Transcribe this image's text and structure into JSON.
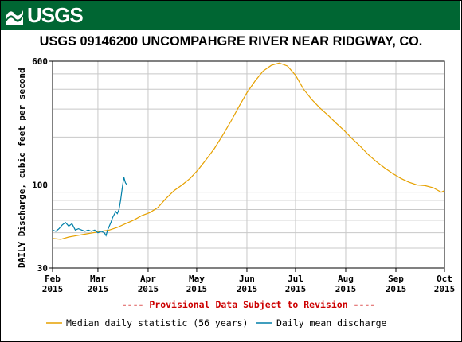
{
  "brand": {
    "logo_text": "USGS",
    "banner_color": "#006633"
  },
  "chart_data": {
    "type": "line",
    "title": "USGS 09146200 UNCOMPAHGRE RIVER NEAR RIDGWAY, CO.",
    "ylabel": "DAILY Discharge, cubic feet per second",
    "xlabel": "",
    "y_scale": "log",
    "ylim": [
      30,
      600
    ],
    "y_ticks": [
      {
        "value": 30,
        "label": "30"
      },
      {
        "value": 100,
        "label": "100"
      },
      {
        "value": 600,
        "label": "600"
      }
    ],
    "x_range": [
      "2015-02-01",
      "2015-10-01"
    ],
    "x_ticks": [
      {
        "date": "2015-02-01",
        "month": "Feb",
        "year": "2015"
      },
      {
        "date": "2015-03-01",
        "month": "Mar",
        "year": "2015"
      },
      {
        "date": "2015-04-01",
        "month": "Apr",
        "year": "2015"
      },
      {
        "date": "2015-05-01",
        "month": "May",
        "year": "2015"
      },
      {
        "date": "2015-06-01",
        "month": "Jun",
        "year": "2015"
      },
      {
        "date": "2015-07-01",
        "month": "Jul",
        "year": "2015"
      },
      {
        "date": "2015-08-01",
        "month": "Aug",
        "year": "2015"
      },
      {
        "date": "2015-09-01",
        "month": "Sep",
        "year": "2015"
      },
      {
        "date": "2015-10-01",
        "month": "Oct",
        "year": "2015"
      }
    ],
    "grid": true,
    "annotation": "---- Provisional Data Subject to Revision ----",
    "series": [
      {
        "name": "Median daily statistic (56 years)",
        "color": "#e6a100",
        "points": [
          [
            "2015-02-01",
            46
          ],
          [
            "2015-02-06",
            45.5
          ],
          [
            "2015-02-11",
            47
          ],
          [
            "2015-02-16",
            48
          ],
          [
            "2015-02-21",
            49
          ],
          [
            "2015-02-26",
            50
          ],
          [
            "2015-03-03",
            51
          ],
          [
            "2015-03-08",
            52
          ],
          [
            "2015-03-13",
            54
          ],
          [
            "2015-03-18",
            57
          ],
          [
            "2015-03-23",
            60
          ],
          [
            "2015-03-28",
            64
          ],
          [
            "2015-04-02",
            67
          ],
          [
            "2015-04-07",
            72
          ],
          [
            "2015-04-12",
            82
          ],
          [
            "2015-04-17",
            92
          ],
          [
            "2015-04-22",
            100
          ],
          [
            "2015-04-27",
            110
          ],
          [
            "2015-05-02",
            125
          ],
          [
            "2015-05-07",
            145
          ],
          [
            "2015-05-12",
            170
          ],
          [
            "2015-05-17",
            205
          ],
          [
            "2015-05-22",
            250
          ],
          [
            "2015-05-27",
            310
          ],
          [
            "2015-06-01",
            380
          ],
          [
            "2015-06-06",
            450
          ],
          [
            "2015-06-11",
            520
          ],
          [
            "2015-06-16",
            565
          ],
          [
            "2015-06-21",
            585
          ],
          [
            "2015-06-26",
            560
          ],
          [
            "2015-07-01",
            490
          ],
          [
            "2015-07-06",
            400
          ],
          [
            "2015-07-11",
            345
          ],
          [
            "2015-07-16",
            305
          ],
          [
            "2015-07-21",
            275
          ],
          [
            "2015-07-26",
            245
          ],
          [
            "2015-07-31",
            220
          ],
          [
            "2015-08-05",
            195
          ],
          [
            "2015-08-10",
            175
          ],
          [
            "2015-08-15",
            155
          ],
          [
            "2015-08-20",
            140
          ],
          [
            "2015-08-25",
            128
          ],
          [
            "2015-08-30",
            118
          ],
          [
            "2015-09-04",
            110
          ],
          [
            "2015-09-09",
            104
          ],
          [
            "2015-09-14",
            100
          ],
          [
            "2015-09-19",
            99
          ],
          [
            "2015-09-24",
            96
          ],
          [
            "2015-09-29",
            90
          ],
          [
            "2015-10-01",
            92
          ]
        ]
      },
      {
        "name": "Daily mean discharge",
        "color": "#007fa8",
        "points": [
          [
            "2015-02-01",
            52
          ],
          [
            "2015-02-03",
            51
          ],
          [
            "2015-02-05",
            53
          ],
          [
            "2015-02-07",
            56
          ],
          [
            "2015-02-09",
            58
          ],
          [
            "2015-02-11",
            55
          ],
          [
            "2015-02-13",
            57
          ],
          [
            "2015-02-15",
            52
          ],
          [
            "2015-02-17",
            53
          ],
          [
            "2015-02-19",
            52
          ],
          [
            "2015-02-21",
            51
          ],
          [
            "2015-02-23",
            52
          ],
          [
            "2015-02-25",
            51
          ],
          [
            "2015-02-27",
            52
          ],
          [
            "2015-03-01",
            50
          ],
          [
            "2015-03-03",
            51
          ],
          [
            "2015-03-05",
            50
          ],
          [
            "2015-03-06",
            48
          ],
          [
            "2015-03-07",
            52
          ],
          [
            "2015-03-09",
            58
          ],
          [
            "2015-03-10",
            62
          ],
          [
            "2015-03-12",
            68
          ],
          [
            "2015-03-13",
            66
          ],
          [
            "2015-03-14",
            70
          ],
          [
            "2015-03-15",
            80
          ],
          [
            "2015-03-16",
            95
          ],
          [
            "2015-03-17",
            112
          ],
          [
            "2015-03-18",
            103
          ],
          [
            "2015-03-19",
            100
          ]
        ]
      }
    ]
  }
}
